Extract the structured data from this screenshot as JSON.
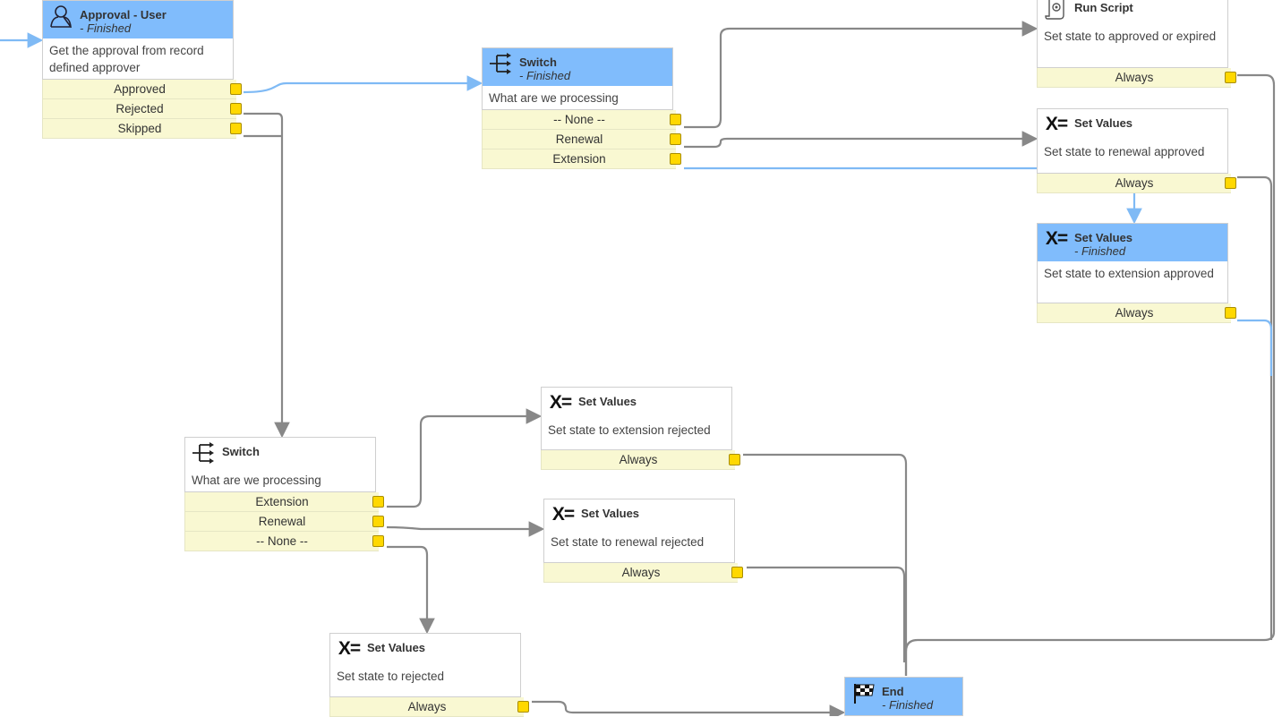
{
  "colors": {
    "active_header": "#80bcfc",
    "condition_bg": "#f9f8d2",
    "port": "#ffd800",
    "wire_active": "#7fbaf5",
    "wire_idle": "#888888"
  },
  "nodes": [
    {
      "id": "approval-user",
      "icon": "user-icon",
      "title": "Approval - User",
      "status": "- Finished",
      "description": "Get the approval from record defined approver",
      "conditions": [
        "Approved",
        "Rejected",
        "Skipped"
      ],
      "active": true
    },
    {
      "id": "switch-1",
      "icon": "switch-icon",
      "title": "Switch",
      "status": "- Finished",
      "description": "What are we processing",
      "conditions": [
        "-- None --",
        "Renewal",
        "Extension"
      ],
      "active": true
    },
    {
      "id": "run-script",
      "icon": "script-icon",
      "title": "Run Script",
      "status": "",
      "description": "Set state to approved or expired",
      "conditions": [
        "Always"
      ],
      "active": false
    },
    {
      "id": "set-values-renewal-approved",
      "icon": "set-values-icon",
      "title": "Set Values",
      "status": "",
      "description": "Set state to renewal approved",
      "conditions": [
        "Always"
      ],
      "active": false
    },
    {
      "id": "set-values-extension-approved",
      "icon": "set-values-icon",
      "title": "Set Values",
      "status": "- Finished",
      "description": "Set state to extension approved",
      "conditions": [
        "Always"
      ],
      "active": true
    },
    {
      "id": "set-values-extension-rejected",
      "icon": "set-values-icon",
      "title": "Set Values",
      "status": "",
      "description": "Set state to extension rejected",
      "conditions": [
        "Always"
      ],
      "active": false
    },
    {
      "id": "set-values-renewal-rejected",
      "icon": "set-values-icon",
      "title": "Set Values",
      "status": "",
      "description": "Set state to renewal rejected",
      "conditions": [
        "Always"
      ],
      "active": false
    },
    {
      "id": "switch-2",
      "icon": "switch-icon",
      "title": "Switch",
      "status": "",
      "description": "What are we processing",
      "conditions": [
        "Extension",
        "Renewal",
        "-- None --"
      ],
      "active": false
    },
    {
      "id": "set-values-rejected",
      "icon": "set-values-icon",
      "title": "Set Values",
      "status": "",
      "description": "Set state to rejected",
      "conditions": [
        "Always"
      ],
      "active": false
    },
    {
      "id": "end",
      "icon": "checkered-flag-icon",
      "title": "End",
      "status": "- Finished",
      "description": "",
      "conditions": [],
      "active": true
    }
  ]
}
